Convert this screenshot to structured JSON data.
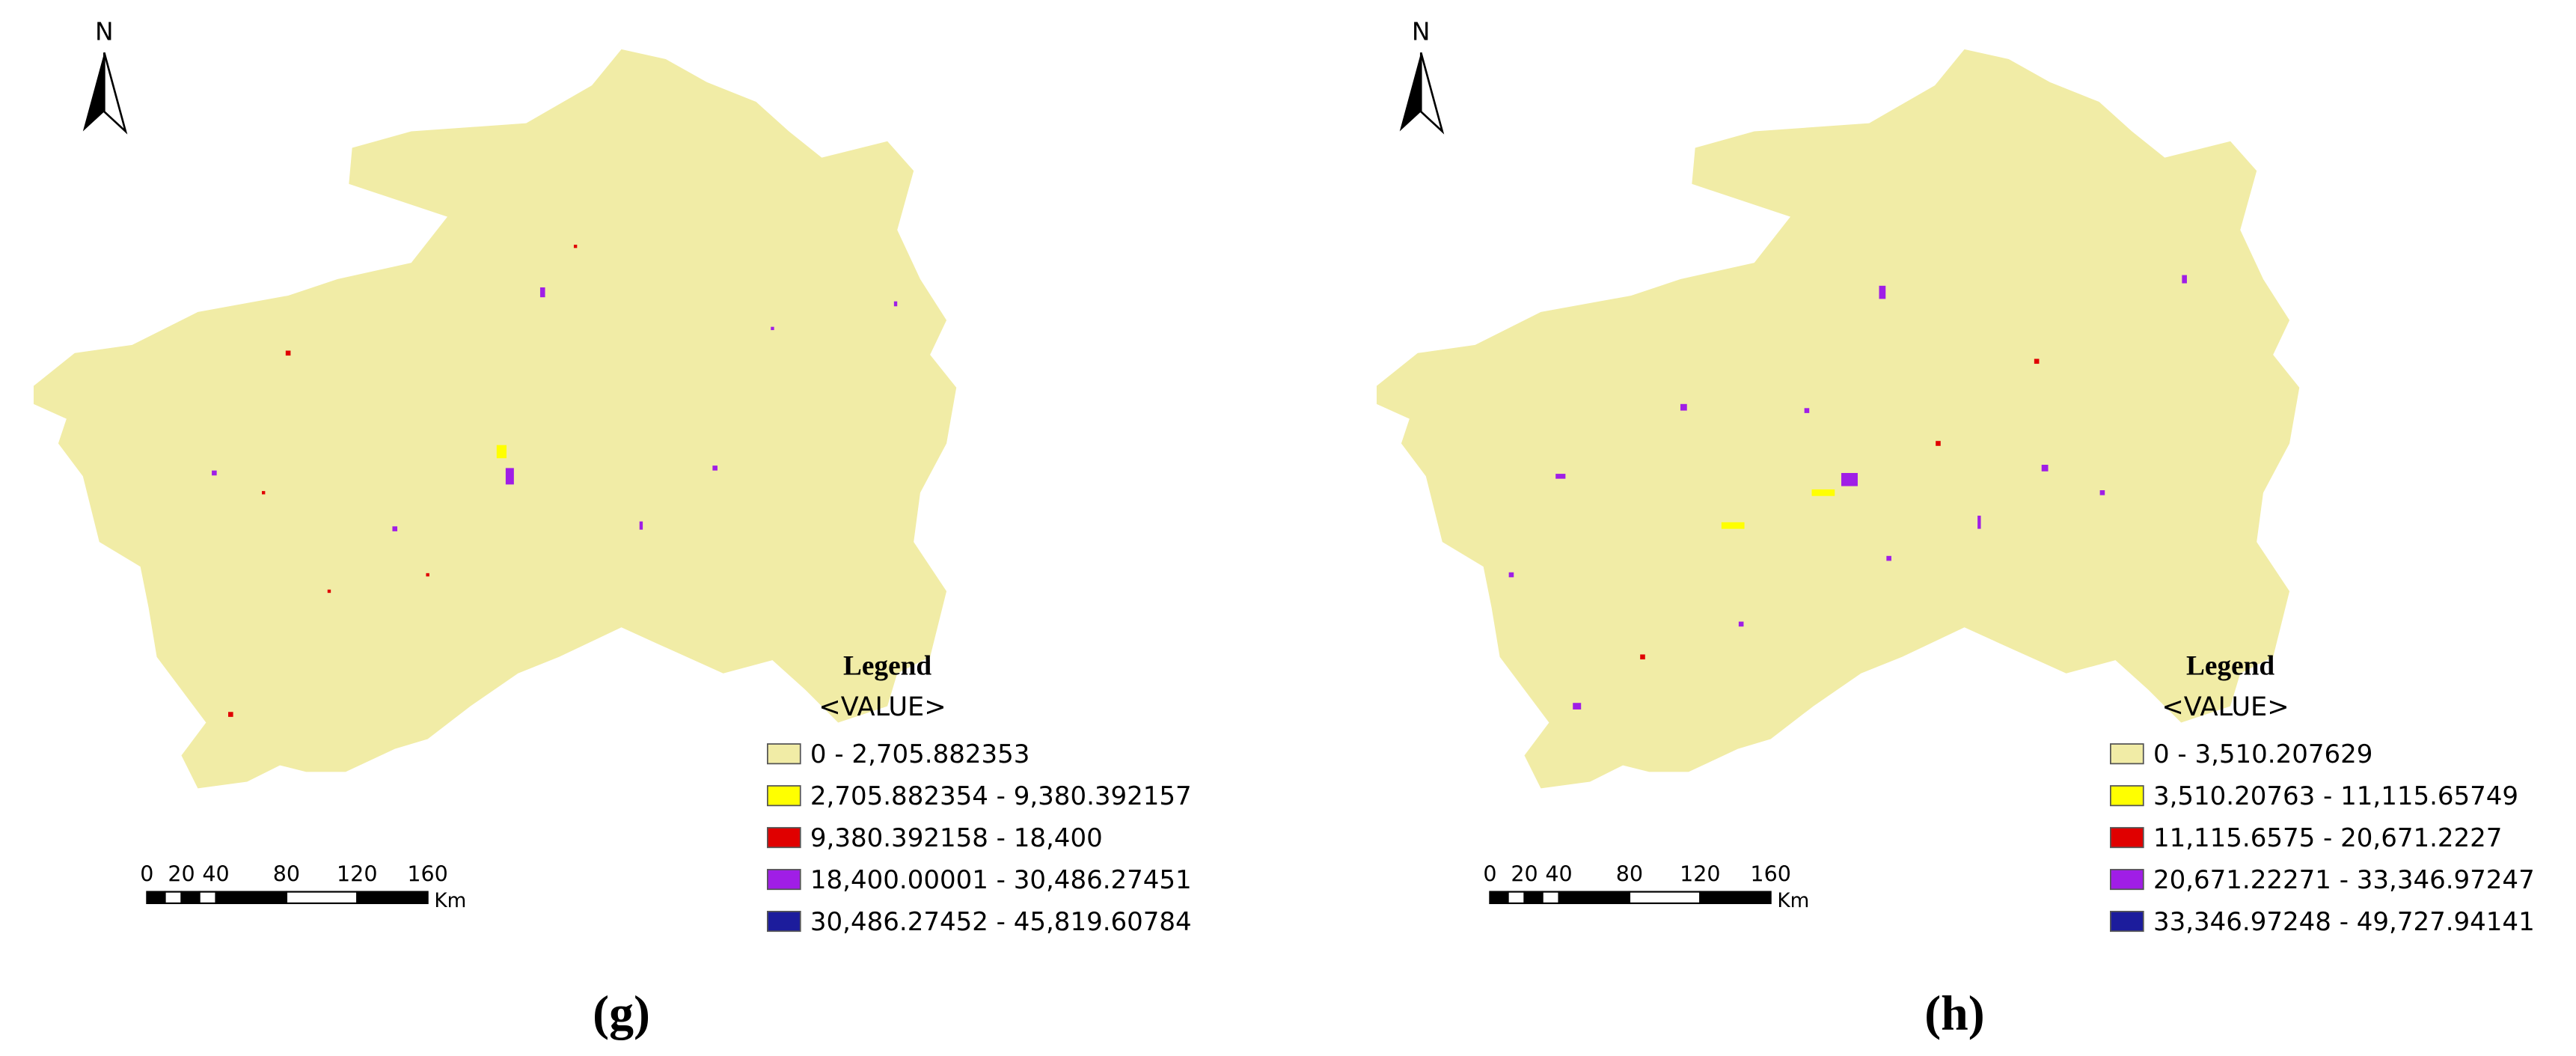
{
  "panels": [
    {
      "north": "N",
      "legend": {
        "title": "Legend",
        "field": "<VALUE>",
        "classes": [
          {
            "label": "0 - 2,705.882353",
            "color": "#f1eca6"
          },
          {
            "label": "2,705.882354 - 9,380.392157",
            "color": "#ffff00"
          },
          {
            "label": "9,380.392158 - 18,400",
            "color": "#e00000"
          },
          {
            "label": "18,400.00001 - 30,486.27451",
            "color": "#a01ee6"
          },
          {
            "label": "30,486.27452 - 45,819.60784",
            "color": "#1c1c9c"
          }
        ]
      },
      "scale_bar": {
        "labels": [
          "0",
          "20",
          "40",
          "80",
          "120",
          "160"
        ],
        "unit": "Km"
      },
      "caption": "(g)"
    },
    {
      "north": "N",
      "legend": {
        "title": "Legend",
        "field": "<VALUE>",
        "classes": [
          {
            "label": "0 - 3,510.207629",
            "color": "#f1eca6"
          },
          {
            "label": "3,510.20763 - 11,115.65749",
            "color": "#ffff00"
          },
          {
            "label": "11,115.6575 - 20,671.2227",
            "color": "#e00000"
          },
          {
            "label": "20,671.22271 - 33,346.97247",
            "color": "#a01ee6"
          },
          {
            "label": "33,346.97248 - 49,727.94141",
            "color": "#1c1c9c"
          }
        ]
      },
      "scale_bar": {
        "labels": [
          "0",
          "20",
          "40",
          "80",
          "120",
          "160"
        ],
        "unit": "Km"
      },
      "caption": "(h)"
    }
  ]
}
